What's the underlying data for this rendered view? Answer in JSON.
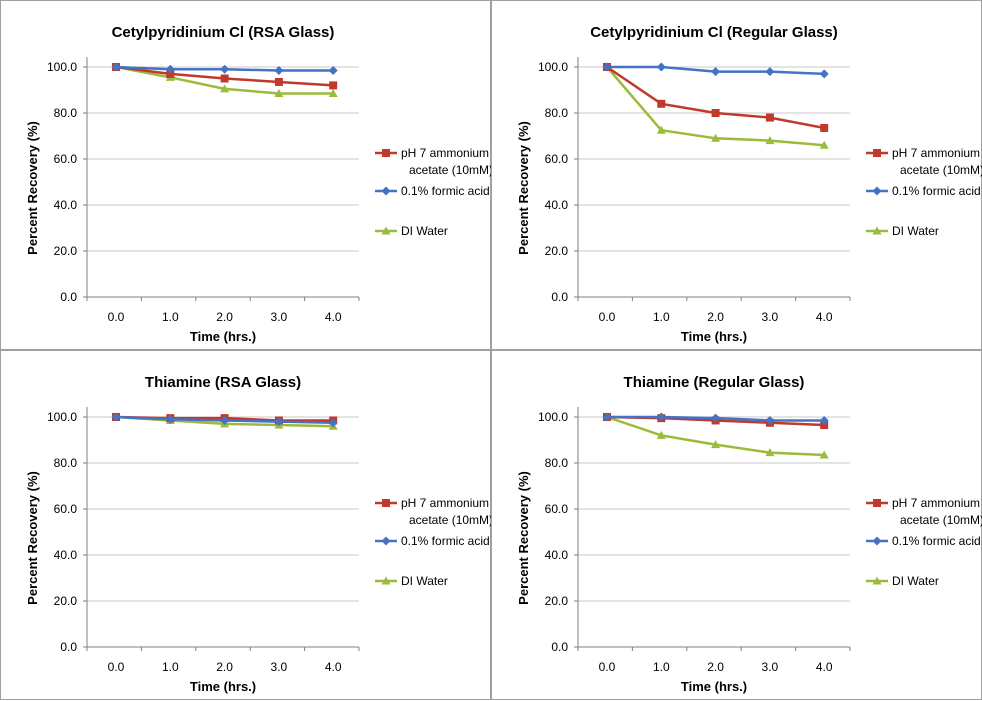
{
  "colors": {
    "ammonium": "#c0392b",
    "formic": "#4472c4",
    "water": "#9bbb3b",
    "grid": "#c8c8c8",
    "axis": "#808080"
  },
  "legend": {
    "ammonium_line1": "pH 7 ammonium",
    "ammonium_line2": "acetate (10mM)",
    "formic": "0.1% formic acid",
    "water": "DI Water"
  },
  "chart_data": [
    {
      "type": "line",
      "title": "Cetylpyridinium Cl (RSA Glass)",
      "xlabel": "Time (hrs.)",
      "ylabel": "Percent Recovery (%)",
      "categories": [
        "0.0",
        "1.0",
        "2.0",
        "3.0",
        "4.0"
      ],
      "yticks": [
        "0.0",
        "20.0",
        "40.0",
        "60.0",
        "80.0",
        "100.0"
      ],
      "ylim": [
        0,
        100
      ],
      "grid": true,
      "legend_position": "right",
      "series": [
        {
          "name": "pH 7 ammonium acetate (10mM)",
          "marker": "square",
          "values": [
            100,
            97,
            95,
            93.5,
            92
          ]
        },
        {
          "name": "0.1% formic acid",
          "marker": "diamond",
          "values": [
            100,
            99,
            99,
            98.5,
            98.5
          ]
        },
        {
          "name": "DI Water",
          "marker": "triangle",
          "values": [
            100,
            95.5,
            90.5,
            88.5,
            88.5
          ]
        }
      ]
    },
    {
      "type": "line",
      "title": "Cetylpyridinium Cl (Regular Glass)",
      "xlabel": "Time (hrs.)",
      "ylabel": "Percent Recovery (%)",
      "categories": [
        "0.0",
        "1.0",
        "2.0",
        "3.0",
        "4.0"
      ],
      "yticks": [
        "0.0",
        "20.0",
        "40.0",
        "60.0",
        "80.0",
        "100.0"
      ],
      "ylim": [
        0,
        100
      ],
      "grid": true,
      "legend_position": "right",
      "series": [
        {
          "name": "pH 7 ammonium acetate (10mM)",
          "marker": "square",
          "values": [
            100,
            84,
            80,
            78,
            73.5
          ]
        },
        {
          "name": "0.1% formic acid",
          "marker": "diamond",
          "values": [
            100,
            100,
            98,
            98,
            97
          ]
        },
        {
          "name": "DI Water",
          "marker": "triangle",
          "values": [
            100,
            72.5,
            69,
            68,
            66
          ]
        }
      ]
    },
    {
      "type": "line",
      "title": "Thiamine (RSA Glass)",
      "xlabel": "Time (hrs.)",
      "ylabel": "Percent Recovery (%)",
      "categories": [
        "0.0",
        "1.0",
        "2.0",
        "3.0",
        "4.0"
      ],
      "yticks": [
        "0.0",
        "20.0",
        "40.0",
        "60.0",
        "80.0",
        "100.0"
      ],
      "ylim": [
        0,
        100
      ],
      "grid": true,
      "legend_position": "right",
      "series": [
        {
          "name": "pH 7 ammonium acetate (10mM)",
          "marker": "square",
          "values": [
            100,
            99.5,
            99.5,
            98.5,
            98.5
          ]
        },
        {
          "name": "0.1% formic acid",
          "marker": "diamond",
          "values": [
            100,
            99,
            98.5,
            98,
            97.5
          ]
        },
        {
          "name": "DI Water",
          "marker": "triangle",
          "values": [
            100,
            98.5,
            97,
            96.5,
            96
          ]
        }
      ]
    },
    {
      "type": "line",
      "title": "Thiamine (Regular Glass)",
      "xlabel": "Time (hrs.)",
      "ylabel": "Percent Recovery (%)",
      "categories": [
        "0.0",
        "1.0",
        "2.0",
        "3.0",
        "4.0"
      ],
      "yticks": [
        "0.0",
        "20.0",
        "40.0",
        "60.0",
        "80.0",
        "100.0"
      ],
      "ylim": [
        0,
        100
      ],
      "grid": true,
      "legend_position": "right",
      "series": [
        {
          "name": "pH 7 ammonium acetate (10mM)",
          "marker": "square",
          "values": [
            100,
            99.5,
            98.5,
            97.5,
            96.5
          ]
        },
        {
          "name": "0.1% formic acid",
          "marker": "diamond",
          "values": [
            100,
            100,
            99.5,
            98.5,
            98.5
          ]
        },
        {
          "name": "DI Water",
          "marker": "triangle",
          "values": [
            100,
            92,
            88,
            84.5,
            83.5
          ]
        }
      ]
    }
  ]
}
